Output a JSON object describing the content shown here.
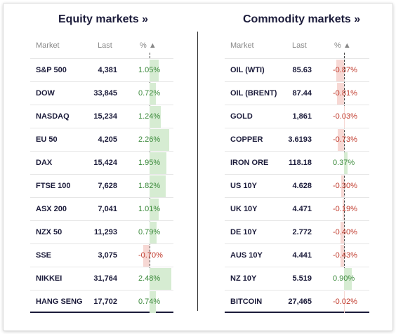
{
  "equity": {
    "title": "Equity markets »",
    "headers": {
      "market": "Market",
      "last": "Last",
      "pct": "% ▲"
    },
    "rows": [
      {
        "name": "S&P 500",
        "last": "4,381",
        "pct": "1.05%",
        "value": 1.05
      },
      {
        "name": "DOW",
        "last": "33,845",
        "pct": "0.72%",
        "value": 0.72
      },
      {
        "name": "NASDAQ",
        "last": "15,234",
        "pct": "1.24%",
        "value": 1.24
      },
      {
        "name": "EU 50",
        "last": "4,205",
        "pct": "2.26%",
        "value": 2.26
      },
      {
        "name": "DAX",
        "last": "15,424",
        "pct": "1.95%",
        "value": 1.95
      },
      {
        "name": "FTSE 100",
        "last": "7,628",
        "pct": "1.82%",
        "value": 1.82
      },
      {
        "name": "ASX 200",
        "last": "7,041",
        "pct": "1.01%",
        "value": 1.01
      },
      {
        "name": "NZX 50",
        "last": "11,293",
        "pct": "0.79%",
        "value": 0.79
      },
      {
        "name": "SSE",
        "last": "3,075",
        "pct": "-0.70%",
        "value": -0.7
      },
      {
        "name": "NIKKEI",
        "last": "31,764",
        "pct": "2.48%",
        "value": 2.48
      },
      {
        "name": "HANG SENG",
        "last": "17,702",
        "pct": "0.74%",
        "value": 0.74
      }
    ]
  },
  "commodity": {
    "title": "Commodity markets »",
    "headers": {
      "market": "Market",
      "last": "Last",
      "pct": "% ▲"
    },
    "rows": [
      {
        "name": "OIL (WTI)",
        "last": "85.63",
        "pct": "-0.87%",
        "value": -0.87
      },
      {
        "name": "OIL (BRENT)",
        "last": "87.44",
        "pct": "-0.81%",
        "value": -0.81
      },
      {
        "name": "GOLD",
        "last": "1,861",
        "pct": "-0.03%",
        "value": -0.03
      },
      {
        "name": "COPPER",
        "last": "3.6193",
        "pct": "-0.73%",
        "value": -0.73
      },
      {
        "name": "IRON ORE",
        "last": "118.18",
        "pct": "0.37%",
        "value": 0.37
      },
      {
        "name": "US 10Y",
        "last": "4.628",
        "pct": "-0.30%",
        "value": -0.3
      },
      {
        "name": "UK 10Y",
        "last": "4.471",
        "pct": "-0.19%",
        "value": -0.19
      },
      {
        "name": "DE 10Y",
        "last": "2.772",
        "pct": "-0.40%",
        "value": -0.4
      },
      {
        "name": "AUS 10Y",
        "last": "4.441",
        "pct": "-0.43%",
        "value": -0.43
      },
      {
        "name": "NZ 10Y",
        "last": "5.519",
        "pct": "0.90%",
        "value": 0.9
      },
      {
        "name": "BITCOIN",
        "last": "27,465",
        "pct": "-0.02%",
        "value": -0.02
      }
    ]
  },
  "colors": {
    "positive": "#3c8a3c",
    "negative": "#c0392b",
    "title": "#1b1b3a"
  }
}
